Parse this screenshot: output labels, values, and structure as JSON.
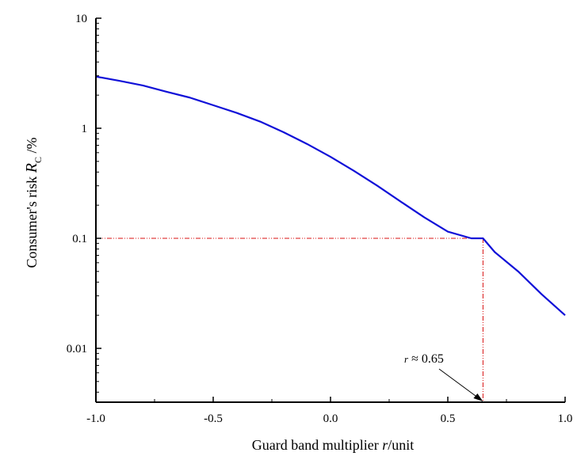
{
  "chart_data": {
    "type": "line",
    "xlabel": {
      "prefix": "Guard band multiplier ",
      "variable": "r",
      "suffix": "/unit"
    },
    "ylabel": {
      "prefix": "Consumer's risk  ",
      "variable": "R",
      "subscript": "C",
      "suffix": " /%"
    },
    "xlim": [
      -1.0,
      1.0
    ],
    "ylim": [
      0.0033,
      10
    ],
    "yscale": "log",
    "x_ticks": [
      -1.0,
      -0.5,
      0.0,
      0.5,
      1.0
    ],
    "x_tick_labels": [
      "-1.0",
      "-0.5",
      "0.0",
      "0.5",
      "1.0"
    ],
    "y_ticks": [
      0.01,
      0.1,
      1,
      10
    ],
    "y_tick_labels": [
      "0.01",
      "0.1",
      "1",
      "10"
    ],
    "grid": false,
    "series": [
      {
        "color": "#1010d8",
        "x": [
          -1.0,
          -0.9,
          -0.8,
          -0.7,
          -0.6,
          -0.5,
          -0.4,
          -0.3,
          -0.2,
          -0.1,
          0.0,
          0.1,
          0.2,
          0.3,
          0.4,
          0.5,
          0.6,
          0.65,
          0.7,
          0.8,
          0.9,
          1.0
        ],
        "y": [
          2.95,
          2.7,
          2.45,
          2.15,
          1.9,
          1.62,
          1.38,
          1.15,
          0.92,
          0.72,
          0.55,
          0.41,
          0.3,
          0.215,
          0.155,
          0.115,
          0.1,
          0.1,
          0.075,
          0.05,
          0.031,
          0.02
        ]
      }
    ],
    "reference_lines": {
      "color": "#d81010",
      "y": 0.1,
      "x": 0.65
    },
    "annotation": {
      "variable": "r",
      "text": " ≈ 0.65",
      "x": 0.65
    }
  }
}
